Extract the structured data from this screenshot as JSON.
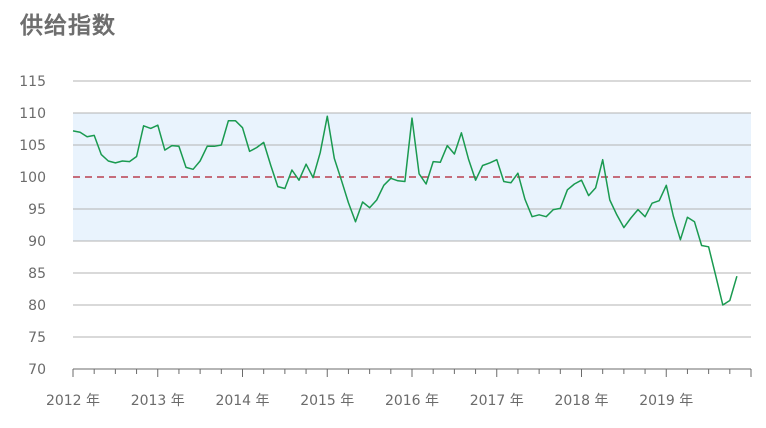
{
  "title": "供给指数",
  "colors": {
    "line": "#1a9a50",
    "band": "#e9f3fd",
    "reference": "#b01c2e",
    "grid": "#b3b3b3",
    "axis": "#6b6b6b",
    "title": "#6e6e6e"
  },
  "chart_data": {
    "type": "line",
    "title": "供给指数",
    "xlabel": "",
    "ylabel": "",
    "ylim": [
      70,
      115
    ],
    "yticks": [
      70,
      75,
      80,
      85,
      90,
      95,
      100,
      105,
      110,
      115
    ],
    "highlight_ticks": [
      100
    ],
    "band": [
      90,
      110
    ],
    "reference_line": 100,
    "grid": true,
    "x_tick_labels": [
      "2012 年",
      "2013 年",
      "2014 年",
      "2015 年",
      "2016 年",
      "2017 年",
      "2018 年",
      "2019 年"
    ],
    "x_start": "2012-01",
    "frequency": "monthly",
    "series": [
      {
        "values": [
          107.2,
          107.0,
          106.3,
          106.5,
          103.5,
          102.5,
          102.2,
          102.5,
          102.4,
          103.2,
          108.0,
          107.6,
          108.1,
          104.2,
          104.9,
          104.8,
          101.5,
          101.2,
          102.5,
          104.8,
          104.8,
          105.0,
          108.8,
          108.8,
          107.7,
          104.0,
          104.6,
          105.4,
          101.8,
          98.5,
          98.2,
          101.1,
          99.5,
          102.0,
          99.9,
          103.8,
          109.5,
          102.9,
          99.5,
          96.0,
          93.0,
          96.1,
          95.2,
          96.4,
          98.7,
          99.8,
          99.4,
          99.3,
          109.2,
          100.5,
          98.9,
          102.4,
          102.3,
          104.9,
          103.6,
          106.9,
          102.8,
          99.5,
          101.8,
          102.2,
          102.7,
          99.3,
          99.1,
          100.6,
          96.5,
          93.8,
          94.1,
          93.8,
          94.9,
          95.1,
          98.0,
          98.9,
          99.5,
          97.1,
          98.3,
          102.7,
          96.4,
          94.1,
          92.1,
          93.6,
          94.9,
          93.8,
          95.9,
          96.3,
          98.7,
          93.9,
          90.2,
          93.7,
          93.0,
          89.3,
          89.1,
          84.6,
          80.0,
          80.7,
          84.5
        ]
      }
    ]
  }
}
